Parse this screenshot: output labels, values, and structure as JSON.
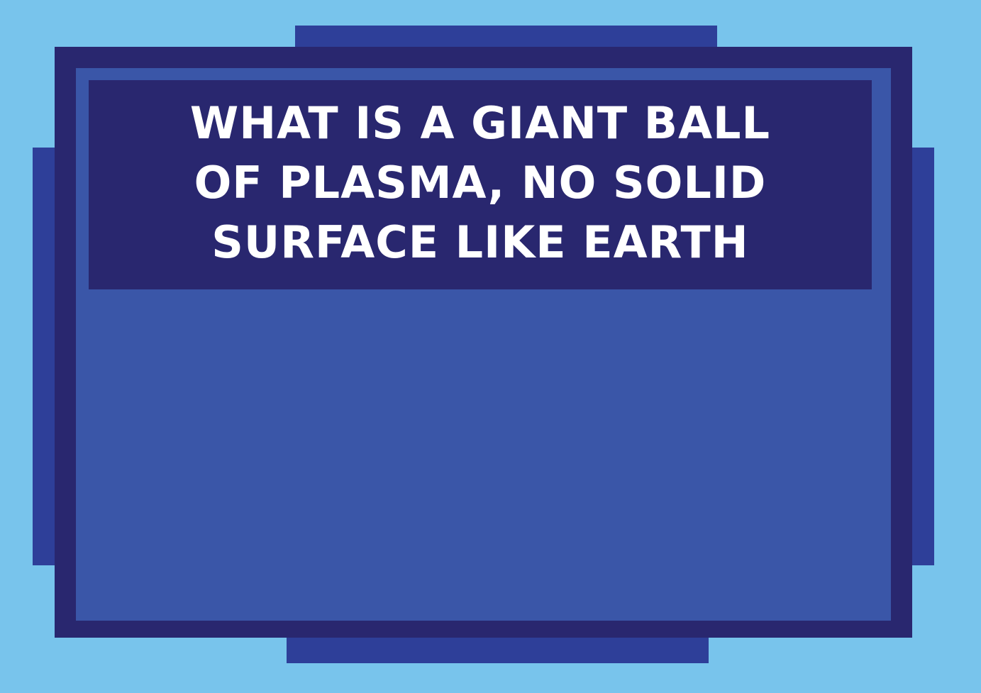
{
  "question": {
    "text": "WHAT IS A GIANT BALL\nOF PLASMA, NO SOLID\nSURFACE LIKE EARTH"
  },
  "colors": {
    "background": "#78c4ec",
    "tabs": "#2e3f99",
    "frame": "#29276f",
    "panel": "#3a56a8",
    "banner": "#29276f",
    "text": "#ffffff"
  }
}
